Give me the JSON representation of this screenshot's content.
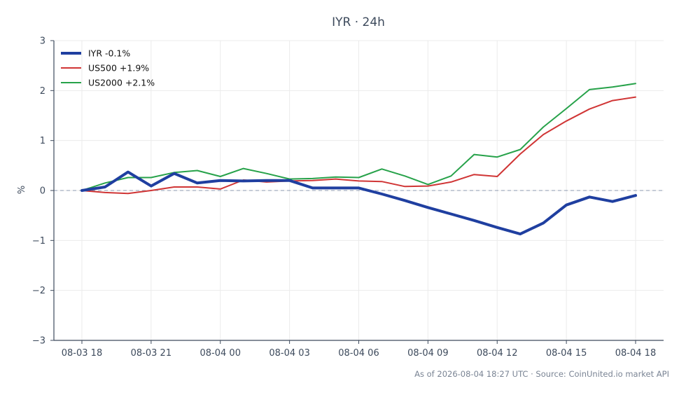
{
  "chart_data": {
    "type": "line",
    "title": "IYR · 24h",
    "ylabel": "%",
    "xlabel": "",
    "ylim": [
      -3,
      3
    ],
    "yticks": [
      3,
      2,
      1,
      0,
      -1,
      -2,
      -3
    ],
    "ytick_labels": [
      "3",
      "2",
      "1",
      "0",
      "−1",
      "−2",
      "−3"
    ],
    "xlim": [
      0,
      24
    ],
    "xticks": [
      0,
      3,
      6,
      9,
      12,
      15,
      18,
      21,
      24
    ],
    "xtick_labels": [
      "08-03 18",
      "08-03 21",
      "08-04 00",
      "08-04 03",
      "08-04 06",
      "08-04 09",
      "08-04 12",
      "08-04 15",
      "08-04 18"
    ],
    "grid": true,
    "zero_line": true,
    "legend_position": "top-left",
    "x_units": "hours from 08-03 18:00 UTC",
    "series": [
      {
        "name": "IYR -0.1%",
        "color": "#1f3fa0",
        "x": [
          0,
          1,
          2,
          3,
          4,
          5,
          6,
          7,
          8,
          9,
          10,
          11,
          12,
          13,
          14,
          15,
          16,
          17,
          18,
          19,
          20,
          21,
          22,
          23,
          24
        ],
        "values": [
          0.0,
          0.07,
          0.37,
          0.09,
          0.34,
          0.15,
          0.2,
          0.19,
          0.2,
          0.2,
          0.05,
          0.05,
          0.05,
          -0.07,
          -0.2,
          -0.34,
          -0.47,
          -0.6,
          -0.74,
          -0.87,
          -0.65,
          -0.29,
          -0.13,
          -0.22,
          -0.1
        ]
      },
      {
        "name": "US500 +1.9%",
        "color": "#d03535",
        "x": [
          0,
          1,
          2,
          3,
          4,
          5,
          6,
          7,
          8,
          9,
          10,
          11,
          12,
          13,
          14,
          15,
          16,
          17,
          18,
          19,
          20,
          21,
          22,
          23,
          24
        ],
        "values": [
          0.0,
          -0.04,
          -0.06,
          0.0,
          0.07,
          0.07,
          0.03,
          0.21,
          0.17,
          0.19,
          0.2,
          0.23,
          0.19,
          0.18,
          0.08,
          0.09,
          0.17,
          0.32,
          0.28,
          0.73,
          1.12,
          1.39,
          1.63,
          1.8,
          1.87
        ]
      },
      {
        "name": "US2000 +2.1%",
        "color": "#27a24a",
        "x": [
          0,
          1,
          2,
          3,
          4,
          5,
          6,
          7,
          8,
          9,
          10,
          11,
          12,
          13,
          14,
          15,
          16,
          17,
          18,
          19,
          20,
          21,
          22,
          23,
          24
        ],
        "values": [
          0.0,
          0.15,
          0.26,
          0.26,
          0.36,
          0.4,
          0.28,
          0.44,
          0.34,
          0.23,
          0.24,
          0.27,
          0.26,
          0.43,
          0.29,
          0.12,
          0.29,
          0.72,
          0.67,
          0.82,
          1.27,
          1.64,
          2.02,
          2.07,
          2.14
        ]
      }
    ]
  },
  "footer": "As of 2026-08-04 18:27 UTC · Source: CoinUnited.io market API"
}
